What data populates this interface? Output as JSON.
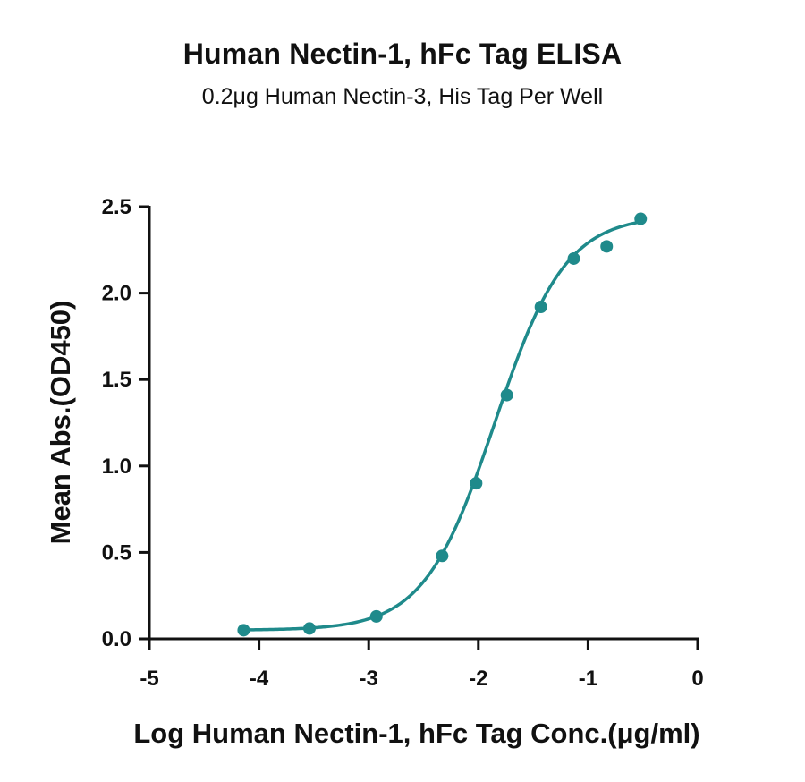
{
  "chart_data": {
    "type": "scatter",
    "title": "Human Nectin-1, hFc Tag ELISA",
    "subtitle": "0.2μg Human Nectin-3, His Tag Per Well",
    "xlabel": "Log Human Nectin-1, hFc Tag Conc.(μg/ml)",
    "ylabel": "Mean Abs.(OD450)",
    "xlim": [
      -5,
      0
    ],
    "ylim": [
      0,
      2.5
    ],
    "x_ticks": [
      -5,
      -4,
      -3,
      -2,
      -1,
      0
    ],
    "x_tick_labels": [
      "-5",
      "-4",
      "-3",
      "-2",
      "-1",
      "0"
    ],
    "y_ticks": [
      0,
      0.5,
      1,
      1.5,
      2,
      2.5
    ],
    "y_tick_labels": [
      "0.0",
      "0.5",
      "1.0",
      "1.5",
      "2.0",
      "2.5"
    ],
    "grid": false,
    "legend": "none",
    "series": [
      {
        "points": [
          {
            "x": -4.14,
            "y": 0.05
          },
          {
            "x": -3.54,
            "y": 0.06
          },
          {
            "x": -2.93,
            "y": 0.13
          },
          {
            "x": -2.33,
            "y": 0.48
          },
          {
            "x": -2.02,
            "y": 0.9
          },
          {
            "x": -1.74,
            "y": 1.41
          },
          {
            "x": -1.43,
            "y": 1.92
          },
          {
            "x": -1.13,
            "y": 2.2
          },
          {
            "x": -0.83,
            "y": 2.27
          },
          {
            "x": -0.52,
            "y": 2.43
          }
        ]
      }
    ],
    "fit_curve": {
      "model": "4PL",
      "bottom": 0.05,
      "top": 2.45,
      "log_ec50": -1.85,
      "hill_slope": 1.35,
      "x_range": [
        -4.14,
        -0.52
      ]
    },
    "colors": {
      "series": "#1f8a8b",
      "axis": "#111111"
    }
  }
}
